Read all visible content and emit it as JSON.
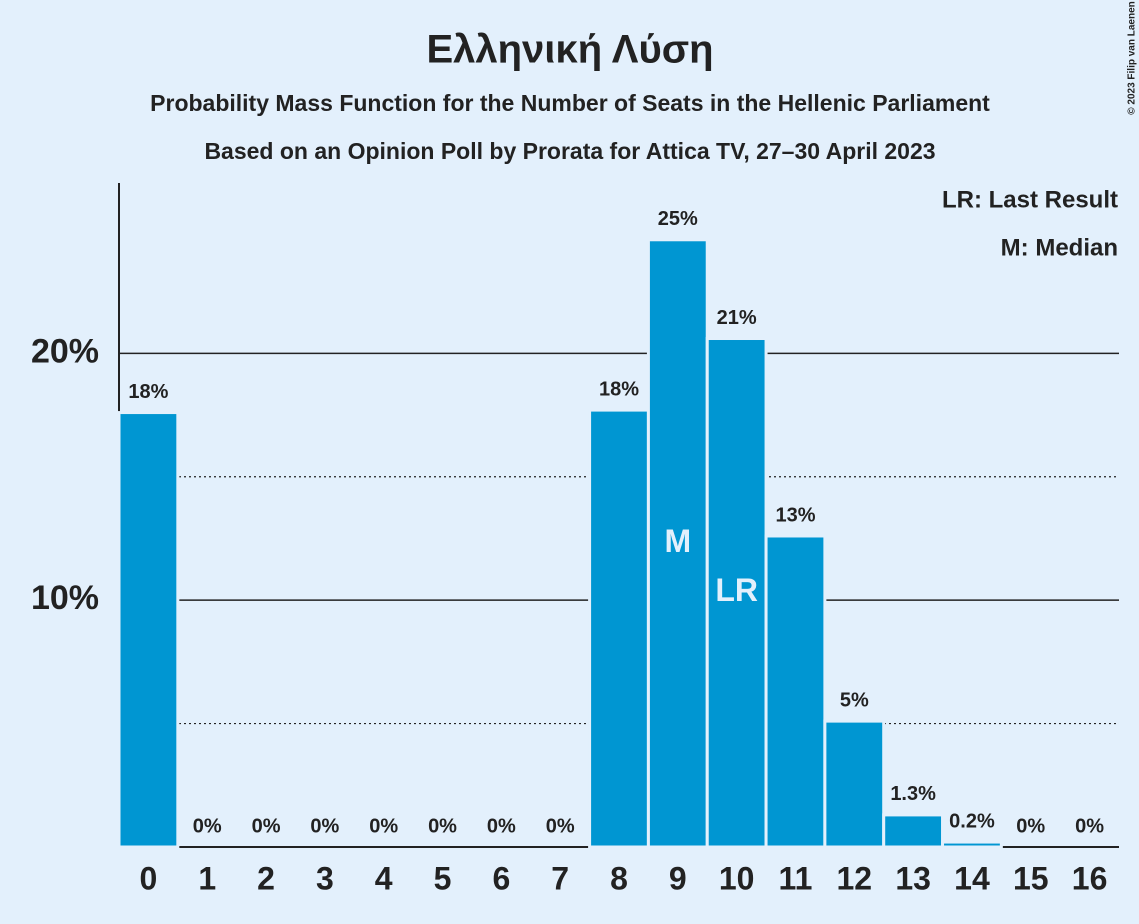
{
  "chart_data": {
    "type": "bar",
    "title": "Ελληνική Λύση",
    "subtitle": "Probability Mass Function for the Number of Seats in the Hellenic Parliament",
    "subtitle2": "Based on an Opinion Poll by Prorata for Attica TV, 27–30 April 2023",
    "copyright": "© 2023 Filip van Laenen",
    "legend": [
      "LR: Last Result",
      "M: Median"
    ],
    "legend_position": "top-right",
    "categories": [
      "0",
      "1",
      "2",
      "3",
      "4",
      "5",
      "6",
      "7",
      "8",
      "9",
      "10",
      "11",
      "12",
      "13",
      "14",
      "15",
      "16"
    ],
    "values": [
      17.6,
      0,
      0,
      0,
      0,
      0,
      0,
      0,
      17.7,
      24.6,
      20.6,
      12.6,
      5.1,
      1.3,
      0.2,
      0,
      0
    ],
    "value_labels": [
      "18%",
      "0%",
      "0%",
      "0%",
      "0%",
      "0%",
      "0%",
      "0%",
      "18%",
      "25%",
      "21%",
      "13%",
      "5%",
      "1.3%",
      "0.2%",
      "0%",
      "0%"
    ],
    "annotations": [
      {
        "category": "9",
        "text": "M"
      },
      {
        "category": "10",
        "text": "LR"
      }
    ],
    "color": "#0096d2",
    "ylim": [
      0,
      26.9
    ],
    "yticks": [
      {
        "value": 10,
        "label": "10%"
      },
      {
        "value": 20,
        "label": "20%"
      }
    ],
    "minor_grid": [
      5,
      15
    ],
    "grid": true
  }
}
